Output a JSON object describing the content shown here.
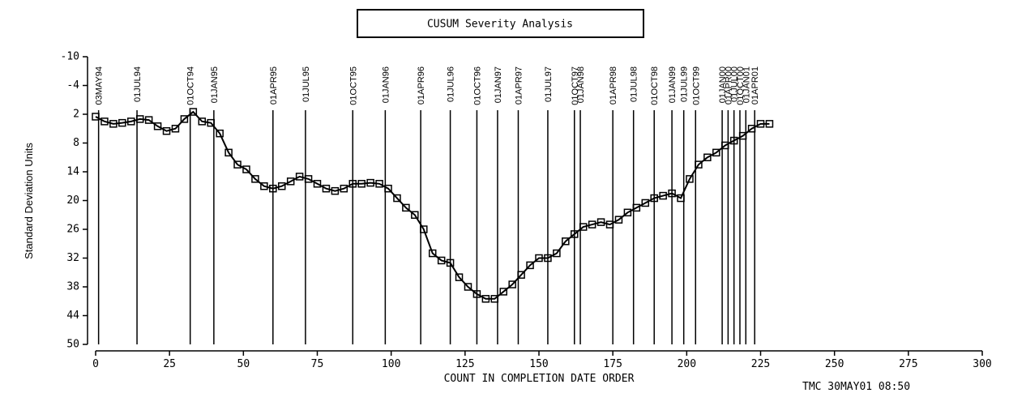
{
  "chart_data": {
    "type": "line",
    "title": "CUSUM Severity Analysis",
    "x_label": "COUNT IN COMPLETION DATE ORDER",
    "y_label": "Standard Deviation Units",
    "footnote": "TMC 30MAY01 08:50",
    "xlim": [
      0,
      300
    ],
    "xticks": [
      0,
      25,
      50,
      75,
      100,
      125,
      150,
      175,
      200,
      225,
      250,
      275,
      300
    ],
    "ylim": [
      -10,
      50
    ],
    "yticks": [
      -10,
      -4,
      2,
      8,
      14,
      20,
      26,
      32,
      38,
      44,
      50
    ],
    "y_inverted": true,
    "color": "#000000",
    "marker": "square",
    "x": [
      0,
      3,
      6,
      9,
      12,
      15,
      18,
      21,
      24,
      27,
      30,
      33,
      36,
      39,
      42,
      45,
      48,
      51,
      54,
      57,
      60,
      63,
      66,
      69,
      72,
      75,
      78,
      81,
      84,
      87,
      90,
      93,
      96,
      99,
      102,
      105,
      108,
      111,
      114,
      117,
      120,
      123,
      126,
      129,
      132,
      135,
      138,
      141,
      144,
      147,
      150,
      153,
      156,
      159,
      162,
      165,
      168,
      171,
      174,
      177,
      180,
      183,
      186,
      189,
      192,
      195,
      198,
      201,
      204,
      207,
      210,
      213,
      216,
      219,
      222,
      225,
      228
    ],
    "values": [
      2.5,
      3.5,
      4,
      3.8,
      3.5,
      3,
      3.2,
      4.5,
      5.5,
      5,
      3,
      1.5,
      3.5,
      3.8,
      6,
      10,
      12.5,
      13.5,
      15.5,
      17,
      17.5,
      17,
      16,
      15,
      15.5,
      16.5,
      17.5,
      18,
      17.5,
      16.5,
      16.5,
      16.3,
      16.5,
      17.5,
      19.5,
      21.5,
      23,
      26,
      31,
      32.5,
      33,
      36,
      38,
      39.5,
      40.5,
      40.5,
      39,
      37.5,
      35.5,
      33.5,
      32,
      32,
      31,
      28.5,
      27,
      25.5,
      25,
      24.5,
      25,
      24,
      22.5,
      21.5,
      20.5,
      19.5,
      19,
      18.5,
      19.5,
      15.5,
      12.5,
      11,
      10,
      8.5,
      7.5,
      6.5,
      5,
      4,
      4
    ],
    "reference_lines": [
      {
        "x": 1,
        "label": "03MAY94"
      },
      {
        "x": 14,
        "label": "01JUL94"
      },
      {
        "x": 32,
        "label": "01OCT94"
      },
      {
        "x": 40,
        "label": "01JAN95"
      },
      {
        "x": 60,
        "label": "01APR95"
      },
      {
        "x": 71,
        "label": "01JUL95"
      },
      {
        "x": 87,
        "label": "01OCT95"
      },
      {
        "x": 98,
        "label": "01JAN96"
      },
      {
        "x": 110,
        "label": "01APR96"
      },
      {
        "x": 120,
        "label": "01JUL96"
      },
      {
        "x": 129,
        "label": "01OCT96"
      },
      {
        "x": 136,
        "label": "01JAN97"
      },
      {
        "x": 143,
        "label": "01APR97"
      },
      {
        "x": 153,
        "label": "01JUL97"
      },
      {
        "x": 162,
        "label": "01OCT97"
      },
      {
        "x": 164,
        "label": "01JAN98"
      },
      {
        "x": 175,
        "label": "01APR98"
      },
      {
        "x": 182,
        "label": "01JUL98"
      },
      {
        "x": 189,
        "label": "01OCT98"
      },
      {
        "x": 195,
        "label": "01JAN99"
      },
      {
        "x": 199,
        "label": "01JUL99"
      },
      {
        "x": 203,
        "label": "01OCT99"
      },
      {
        "x": 212,
        "label": "01JAN00"
      },
      {
        "x": 214,
        "label": "01APR00"
      },
      {
        "x": 216,
        "label": "01JUL00"
      },
      {
        "x": 218,
        "label": "01OCT00"
      },
      {
        "x": 220,
        "label": "01JAN01"
      },
      {
        "x": 223,
        "label": "01APR01"
      }
    ]
  }
}
